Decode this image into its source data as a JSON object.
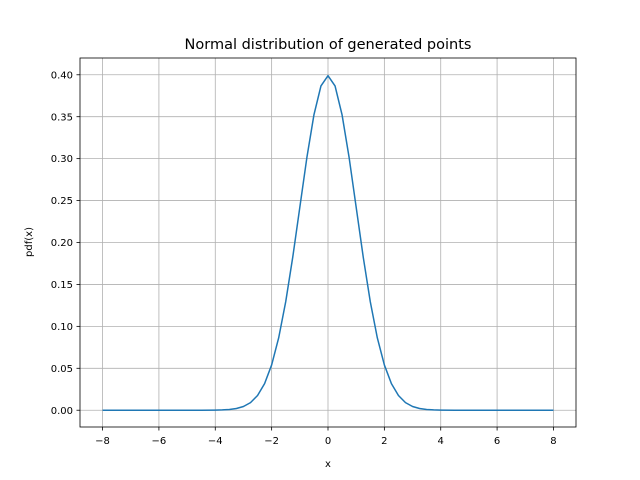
{
  "chart_data": {
    "type": "line",
    "title": "Normal distribution of generated points",
    "xlabel": "x",
    "ylabel": "pdf(x)",
    "xlim": [
      -8.8,
      8.8
    ],
    "ylim": [
      -0.02,
      0.42
    ],
    "xticks": [
      -8,
      -6,
      -4,
      -2,
      0,
      2,
      4,
      6,
      8
    ],
    "xtick_labels": [
      "−8",
      "−6",
      "−4",
      "−2",
      "0",
      "2",
      "4",
      "6",
      "8"
    ],
    "yticks": [
      0.0,
      0.05,
      0.1,
      0.15,
      0.2,
      0.25,
      0.3,
      0.35,
      0.4
    ],
    "ytick_labels": [
      "0.00",
      "0.05",
      "0.10",
      "0.15",
      "0.20",
      "0.25",
      "0.30",
      "0.35",
      "0.40"
    ],
    "grid": true,
    "series": [
      {
        "color": "#1f77b4",
        "x": [
          -8,
          -7.5,
          -7,
          -6.5,
          -6,
          -5.5,
          -5,
          -4.5,
          -4,
          -3.75,
          -3.5,
          -3.25,
          -3,
          -2.75,
          -2.5,
          -2.25,
          -2,
          -1.75,
          -1.5,
          -1.25,
          -1,
          -0.75,
          -0.5,
          -0.25,
          0,
          0.25,
          0.5,
          0.75,
          1,
          1.25,
          1.5,
          1.75,
          2,
          2.25,
          2.5,
          2.75,
          3,
          3.25,
          3.5,
          3.75,
          4,
          4.5,
          5,
          5.5,
          6,
          6.5,
          7,
          7.5,
          8
        ],
        "y": [
          0.0,
          0.0,
          0.0,
          0.0,
          0.0,
          0.0,
          1.5e-06,
          1.6e-05,
          0.000134,
          0.000353,
          0.000873,
          0.002029,
          0.004432,
          0.009094,
          0.017528,
          0.03174,
          0.053991,
          0.086277,
          0.129518,
          0.182649,
          0.241971,
          0.301137,
          0.352065,
          0.386668,
          0.398942,
          0.386668,
          0.352065,
          0.301137,
          0.241971,
          0.182649,
          0.129518,
          0.086277,
          0.053991,
          0.03174,
          0.017528,
          0.009094,
          0.004432,
          0.002029,
          0.000873,
          0.000353,
          0.000134,
          1.6e-05,
          1.5e-06,
          0.0,
          0.0,
          0.0,
          0.0,
          0.0,
          0.0
        ]
      }
    ]
  }
}
